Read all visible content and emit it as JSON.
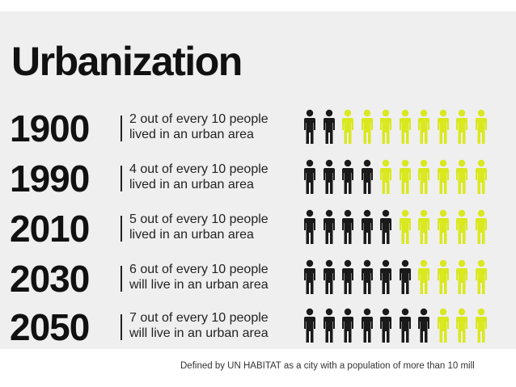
{
  "title": "Urbanization",
  "colors": {
    "urban": "#1a1a1a",
    "rural": "#d9e81f",
    "background": "#efefef"
  },
  "icon": "person-icon",
  "rows": [
    {
      "year": "1900",
      "line1": "2 out of every 10 people",
      "line2": "lived in an urban area",
      "urban_count": 2,
      "total": 10
    },
    {
      "year": "1990",
      "line1": "4 out of every 10 people",
      "line2": "lived in an urban area",
      "urban_count": 4,
      "total": 10
    },
    {
      "year": "2010",
      "line1": "5 out of every 10 people",
      "line2": "lived in an urban area",
      "urban_count": 5,
      "total": 10
    },
    {
      "year": "2030",
      "line1": "6 out of every 10 people",
      "line2": "will live in an urban area",
      "urban_count": 6,
      "total": 10
    },
    {
      "year": "2050",
      "line1": "7 out of every 10 people",
      "line2": "will live in an urban area",
      "urban_count": 7,
      "total": 10
    }
  ],
  "footnote": "Defined by UN HABITAT as a city with a population of more than 10 mill"
}
